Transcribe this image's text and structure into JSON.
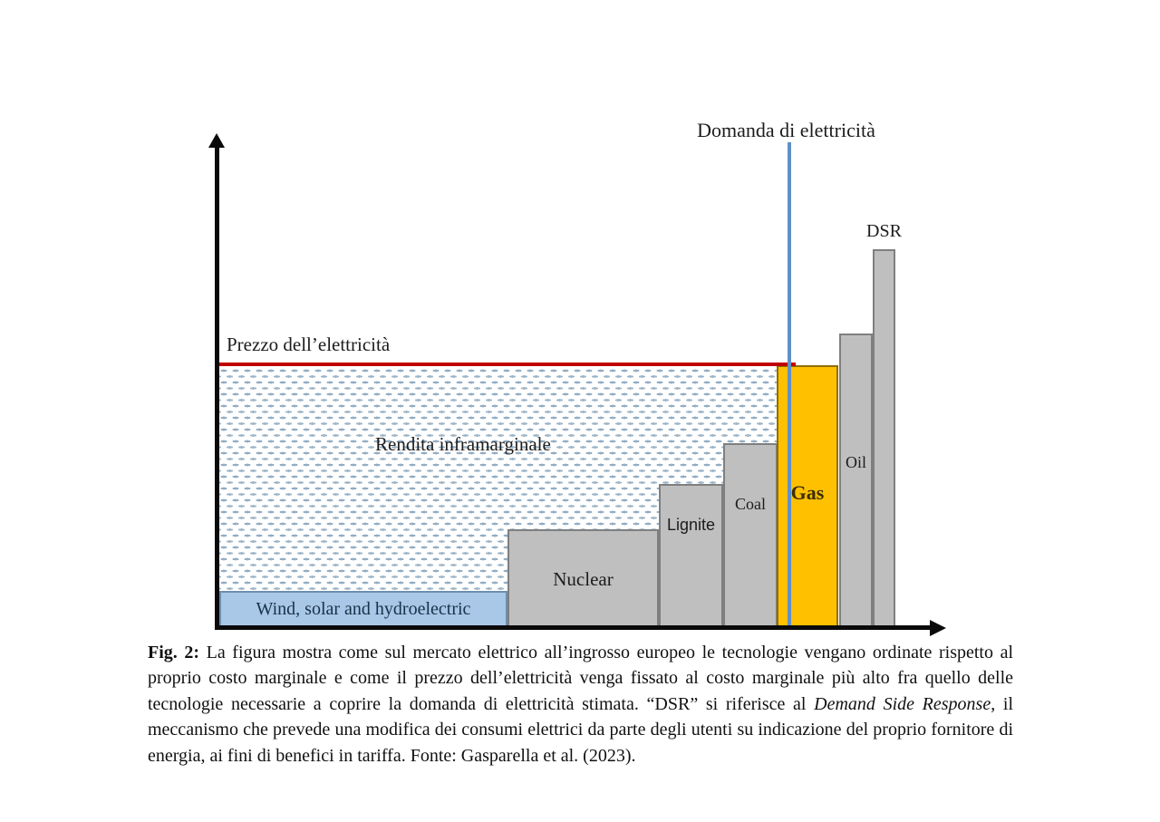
{
  "chart": {
    "annotations": {
      "demand": "Domanda di elettricità",
      "price": "Prezzo dell’elettricità",
      "rent": "Rendita inframarginale",
      "dsr": "DSR"
    },
    "bars": [
      {
        "label": "Wind, solar and hydroelectric"
      },
      {
        "label": "Nuclear"
      },
      {
        "label": "Lignite"
      },
      {
        "label": "Coal"
      },
      {
        "label": "Gas"
      },
      {
        "label": "Oil"
      },
      {
        "label": "DSR"
      }
    ]
  },
  "chart_data": {
    "type": "bar",
    "variant": "merit-order supply curve (stepped bars, unlabeled axes)",
    "title": "",
    "xlabel": "",
    "ylabel": "",
    "legend": false,
    "grid": false,
    "categories": [
      "Wind, solar and hydroelectric",
      "Nuclear",
      "Lignite",
      "Coal",
      "Gas",
      "Oil",
      "DSR"
    ],
    "series": [
      {
        "name": "marginal_cost_relative (price line = 100)",
        "values": [
          14,
          38,
          55,
          70,
          100,
          112,
          144
        ]
      },
      {
        "name": "capacity_width_relative_px",
        "values": [
          318,
          167,
          71,
          60,
          68,
          37,
          25
        ]
      }
    ],
    "price_line": {
      "label": "Prezzo dell’elettricità",
      "level_relative": 100,
      "color": "#c00000"
    },
    "demand_line": {
      "label": "Domanda di elettricità",
      "x_relative_of_total_capacity": 0.84,
      "color": "#6090c8"
    },
    "shaded_area": {
      "label": "Rendita inframarginale",
      "style": "light-blue horizontal dashes between supply steps and price line"
    },
    "bar_colors": {
      "wind": "#a9c7e7",
      "nuclear_lignite_coal_oil_dsr": "#bfbfbf",
      "gas": "#ffc000"
    }
  },
  "caption": {
    "fig_label": "Fig. 2:",
    "part1": " La figura mostra come sul mercato elettrico all’ingrosso europeo le tecnologie vengano ordinate rispetto al proprio costo marginale e come il prezzo dell’elettricità venga fissato al costo marginale più alto fra quello delle tecnologie necessarie a coprire la domanda di elettricità stimata. “DSR” si riferisce al ",
    "italic": "Demand Side Response",
    "part2": ", il meccanismo che prevede una modifica dei consumi elettrici da parte degli utenti su indicazione del proprio fornitore di energia, ai fini di benefici in tariffa. Fonte: Gasparella et al. (2023)."
  }
}
